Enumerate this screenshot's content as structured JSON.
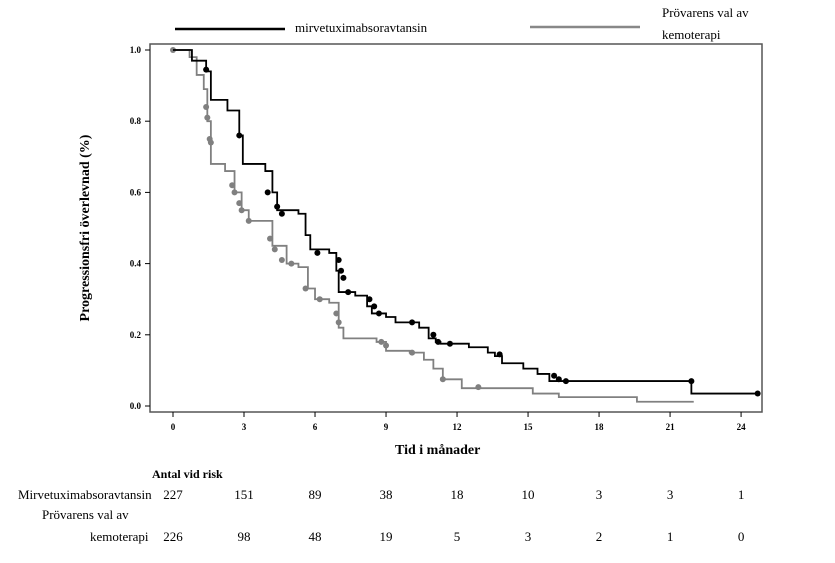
{
  "chart_data": {
    "type": "line",
    "subtype": "kaplan-meier",
    "xlabel": "Tid i månader",
    "ylabel": "Progressionsfri överlevnad (%)",
    "xlim": [
      -1,
      26
    ],
    "ylim": [
      0,
      1.0
    ],
    "xticks": [
      0,
      3,
      6,
      9,
      12,
      15,
      18,
      21,
      24
    ],
    "yticks": [
      "0.0",
      "0.2",
      "0.4",
      "0.6",
      "0.8",
      "1.0"
    ],
    "legend_position": "top",
    "series": [
      {
        "name": "mirvetuximabsoravtansin",
        "color": "#000000",
        "steps": [
          [
            0,
            1.0
          ],
          [
            0.8,
            0.97
          ],
          [
            1.4,
            0.94
          ],
          [
            1.6,
            0.86
          ],
          [
            2.3,
            0.83
          ],
          [
            2.8,
            0.76
          ],
          [
            2.95,
            0.68
          ],
          [
            3.9,
            0.66
          ],
          [
            4.2,
            0.6
          ],
          [
            4.4,
            0.55
          ],
          [
            5.3,
            0.54
          ],
          [
            5.6,
            0.48
          ],
          [
            5.8,
            0.44
          ],
          [
            6.6,
            0.43
          ],
          [
            6.9,
            0.38
          ],
          [
            7.0,
            0.32
          ],
          [
            7.7,
            0.31
          ],
          [
            8.2,
            0.28
          ],
          [
            8.4,
            0.26
          ],
          [
            9.0,
            0.25
          ],
          [
            9.4,
            0.235
          ],
          [
            10.4,
            0.22
          ],
          [
            10.8,
            0.19
          ],
          [
            11.1,
            0.18
          ],
          [
            11.3,
            0.175
          ],
          [
            12.5,
            0.165
          ],
          [
            13.3,
            0.15
          ],
          [
            13.6,
            0.14
          ],
          [
            13.9,
            0.12
          ],
          [
            14.8,
            0.105
          ],
          [
            15.4,
            0.09
          ],
          [
            15.9,
            0.07
          ],
          [
            21.9,
            0.035
          ],
          [
            24.7,
            0.035
          ]
        ],
        "censored": [
          [
            1.4,
            0.945
          ],
          [
            2.8,
            0.76
          ],
          [
            4.0,
            0.6
          ],
          [
            4.4,
            0.56
          ],
          [
            4.6,
            0.54
          ],
          [
            6.1,
            0.43
          ],
          [
            7.0,
            0.41
          ],
          [
            7.1,
            0.38
          ],
          [
            7.2,
            0.36
          ],
          [
            7.4,
            0.32
          ],
          [
            8.3,
            0.3
          ],
          [
            8.5,
            0.28
          ],
          [
            8.7,
            0.26
          ],
          [
            10.1,
            0.235
          ],
          [
            11.0,
            0.2
          ],
          [
            11.2,
            0.18
          ],
          [
            11.7,
            0.175
          ],
          [
            13.8,
            0.145
          ],
          [
            16.1,
            0.085
          ],
          [
            16.3,
            0.075
          ],
          [
            16.6,
            0.07
          ],
          [
            21.9,
            0.07
          ],
          [
            24.7,
            0.035
          ]
        ]
      },
      {
        "name": "Prövarens val av kemoterapi",
        "color": "#808080",
        "steps": [
          [
            0,
            1.0
          ],
          [
            0.7,
            0.98
          ],
          [
            1.0,
            0.93
          ],
          [
            1.3,
            0.89
          ],
          [
            1.45,
            0.8
          ],
          [
            1.6,
            0.68
          ],
          [
            2.2,
            0.66
          ],
          [
            2.6,
            0.6
          ],
          [
            2.9,
            0.55
          ],
          [
            3.2,
            0.52
          ],
          [
            4.0,
            0.52
          ],
          [
            4.2,
            0.45
          ],
          [
            4.8,
            0.4
          ],
          [
            5.3,
            0.39
          ],
          [
            5.7,
            0.33
          ],
          [
            6.0,
            0.3
          ],
          [
            6.6,
            0.29
          ],
          [
            7.0,
            0.22
          ],
          [
            7.2,
            0.19
          ],
          [
            8.6,
            0.18
          ],
          [
            9.0,
            0.155
          ],
          [
            10.0,
            0.15
          ],
          [
            10.6,
            0.13
          ],
          [
            11.0,
            0.105
          ],
          [
            11.4,
            0.075
          ],
          [
            12.2,
            0.05
          ],
          [
            14.5,
            0.05
          ],
          [
            15.2,
            0.035
          ],
          [
            16.3,
            0.025
          ],
          [
            19.6,
            0.012
          ],
          [
            22.0,
            0.012
          ]
        ],
        "censored": [
          [
            0,
            1.0
          ],
          [
            1.4,
            0.84
          ],
          [
            1.45,
            0.81
          ],
          [
            1.55,
            0.75
          ],
          [
            1.6,
            0.74
          ],
          [
            2.5,
            0.62
          ],
          [
            2.6,
            0.6
          ],
          [
            2.8,
            0.57
          ],
          [
            2.9,
            0.55
          ],
          [
            3.2,
            0.52
          ],
          [
            4.1,
            0.47
          ],
          [
            4.3,
            0.44
          ],
          [
            4.6,
            0.41
          ],
          [
            5.0,
            0.4
          ],
          [
            5.6,
            0.33
          ],
          [
            6.2,
            0.3
          ],
          [
            6.9,
            0.26
          ],
          [
            7.0,
            0.235
          ],
          [
            8.8,
            0.18
          ],
          [
            9.0,
            0.17
          ],
          [
            10.1,
            0.15
          ],
          [
            11.4,
            0.075
          ],
          [
            12.9,
            0.053
          ]
        ]
      }
    ]
  },
  "risk_table": {
    "title": "Antal vid risk",
    "rows": [
      {
        "label": "Mirvetuximabsoravtansin",
        "values": [
          "227",
          "151",
          "89",
          "38",
          "18",
          "10",
          "3",
          "3",
          "1"
        ]
      },
      {
        "label_line1": "Prövarens val av",
        "label_line2": "kemoterapi",
        "values": [
          "226",
          "98",
          "48",
          "19",
          "5",
          "3",
          "2",
          "1",
          "0"
        ]
      }
    ]
  }
}
